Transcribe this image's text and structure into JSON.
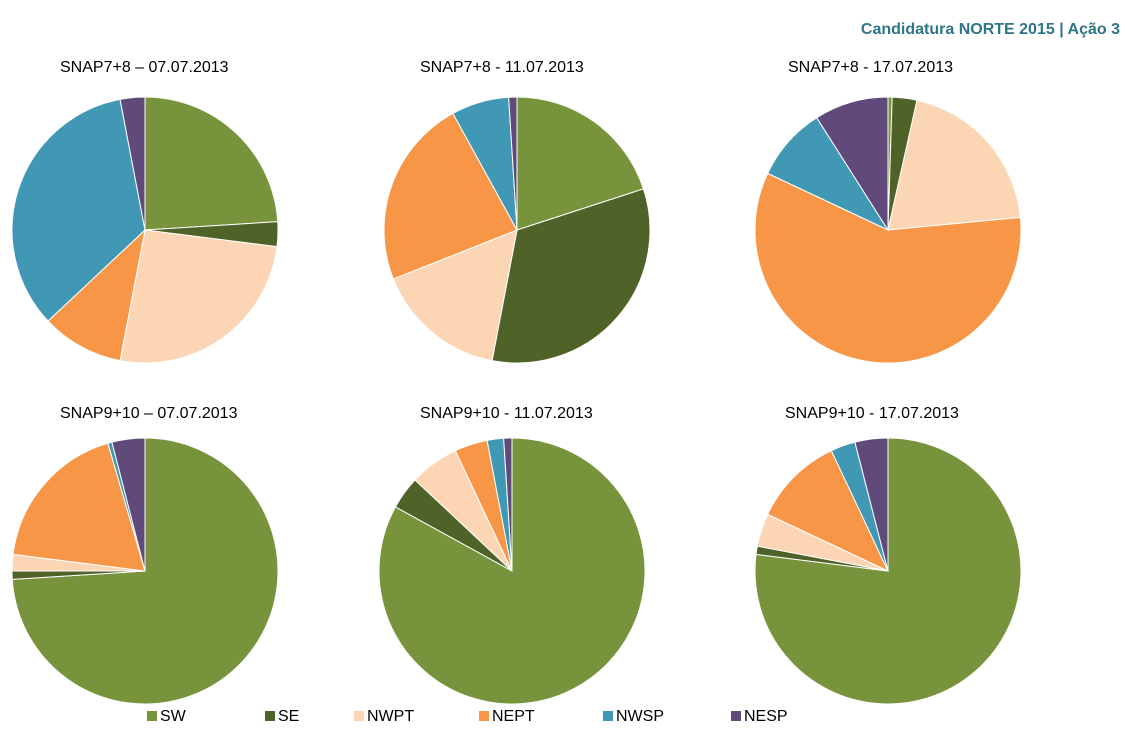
{
  "header": "Candidatura NORTE 2015 | Ação 3",
  "chart_data": [
    {
      "type": "pie",
      "title": "SNAP7+8 – 07.07.2013",
      "categories": [
        "SW",
        "SE",
        "NWPT",
        "NEPT",
        "NWSP",
        "NESP"
      ],
      "colors": [
        "#77933c",
        "#4f6228",
        "#fcd5b5",
        "#f79646",
        "#4198b5",
        "#604a7b"
      ],
      "values": [
        24,
        3,
        26,
        10,
        34,
        3
      ]
    },
    {
      "type": "pie",
      "title": "SNAP7+8 - 11.07.2013",
      "categories": [
        "SW",
        "SE",
        "NWPT",
        "NEPT",
        "NWSP",
        "NESP"
      ],
      "colors": [
        "#77933c",
        "#4f6228",
        "#fcd5b5",
        "#f79646",
        "#4198b5",
        "#604a7b"
      ],
      "values": [
        20,
        33,
        16,
        23,
        7,
        1
      ]
    },
    {
      "type": "pie",
      "title": "SNAP7+8 - 17.07.2013",
      "categories": [
        "SW",
        "SE",
        "NWPT",
        "NEPT",
        "NWSP",
        "NESP"
      ],
      "colors": [
        "#77933c",
        "#4f6228",
        "#fcd5b5",
        "#f79646",
        "#4198b5",
        "#604a7b"
      ],
      "values": [
        0.5,
        3,
        20,
        58.5,
        9,
        9
      ]
    },
    {
      "type": "pie",
      "title": "SNAP9+10 – 07.07.2013",
      "categories": [
        "SW",
        "SE",
        "NWPT",
        "NEPT",
        "NWSP",
        "NESP"
      ],
      "colors": [
        "#77933c",
        "#4f6228",
        "#fcd5b5",
        "#f79646",
        "#4198b5",
        "#604a7b"
      ],
      "values": [
        74,
        1,
        2,
        18.5,
        0.5,
        4
      ]
    },
    {
      "type": "pie",
      "title": "SNAP9+10 - 11.07.2013",
      "categories": [
        "SW",
        "SE",
        "NWPT",
        "NEPT",
        "NWSP",
        "NESP"
      ],
      "colors": [
        "#77933c",
        "#4f6228",
        "#fcd5b5",
        "#f79646",
        "#4198b5",
        "#604a7b"
      ],
      "values": [
        83,
        4,
        6,
        4,
        2,
        1
      ]
    },
    {
      "type": "pie",
      "title": "SNAP9+10 - 17.07.2013",
      "categories": [
        "SW",
        "SE",
        "NWPT",
        "NEPT",
        "NWSP",
        "NESP"
      ],
      "colors": [
        "#77933c",
        "#4f6228",
        "#fcd5b5",
        "#f79646",
        "#4198b5",
        "#604a7b"
      ],
      "values": [
        77,
        1,
        4,
        11,
        3,
        4
      ]
    }
  ]
}
